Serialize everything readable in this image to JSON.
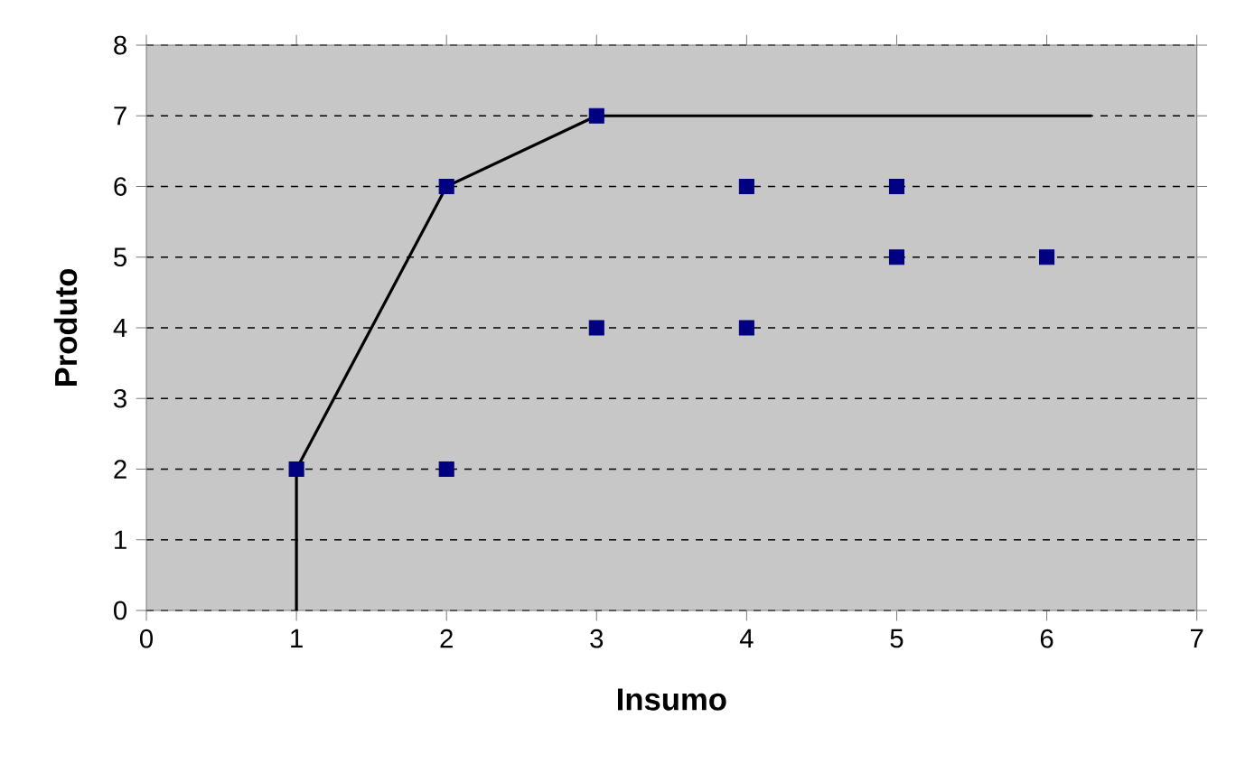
{
  "chart_data": {
    "type": "scatter",
    "xlabel": "Insumo",
    "ylabel": "Produto",
    "xlim": [
      0,
      7
    ],
    "ylim": [
      0,
      8
    ],
    "xticks": [
      0,
      1,
      2,
      3,
      4,
      5,
      6,
      7
    ],
    "yticks": [
      0,
      1,
      2,
      3,
      4,
      5,
      6,
      7,
      8
    ],
    "grid": "y",
    "marker": "square",
    "series": [
      {
        "color": "#000080",
        "x": [
          1,
          2,
          2,
          3,
          3,
          4,
          4,
          5,
          5,
          6
        ],
        "values": [
          2,
          6,
          2,
          7,
          4,
          6,
          4,
          6,
          5,
          5
        ]
      },
      {
        "type": "line",
        "color": "#000000",
        "marker": "none",
        "line_style": "solid",
        "x": [
          1,
          1,
          2,
          3,
          6.3
        ],
        "values": [
          0,
          2,
          6,
          7,
          7
        ]
      }
    ]
  }
}
